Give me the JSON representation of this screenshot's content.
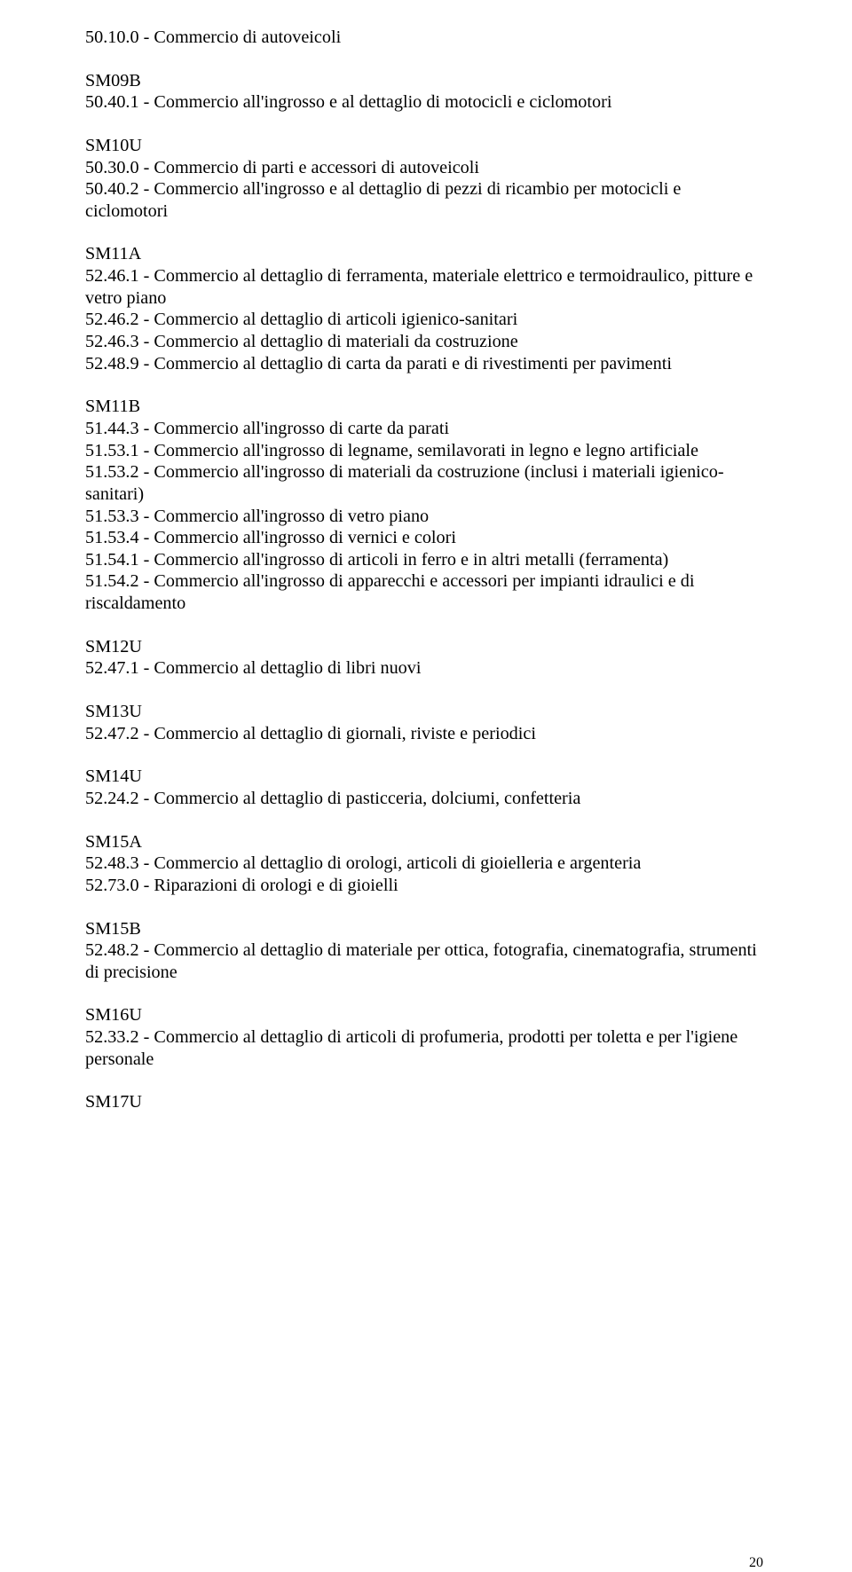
{
  "lines": [
    "50.10.0 - Commercio di autoveicoli",
    "BLANK",
    "SM09B",
    "50.40.1 - Commercio all'ingrosso e al dettaglio di motocicli e ciclomotori",
    "BLANK",
    "SM10U",
    "50.30.0 - Commercio di parti e accessori di autoveicoli",
    "50.40.2 - Commercio all'ingrosso e al dettaglio di pezzi di ricambio per motocicli e ciclomotori",
    "BLANK",
    "SM11A",
    "52.46.1 - Commercio al dettaglio di ferramenta, materiale elettrico e termoidraulico, pitture e vetro piano",
    "52.46.2 - Commercio al dettaglio di articoli igienico-sanitari",
    "52.46.3 - Commercio al dettaglio di materiali da costruzione",
    "52.48.9 - Commercio al dettaglio di carta da parati e di rivestimenti per pavimenti",
    "BLANK",
    "SM11B",
    "51.44.3 - Commercio all'ingrosso di carte da parati",
    "51.53.1 - Commercio all'ingrosso di legname, semilavorati in legno e legno artificiale",
    "51.53.2 - Commercio all'ingrosso di materiali da costruzione (inclusi i materiali igienico-sanitari)",
    "51.53.3 - Commercio all'ingrosso di vetro piano",
    "51.53.4 - Commercio all'ingrosso di vernici e colori",
    "51.54.1 - Commercio all'ingrosso di articoli in ferro e in altri metalli (ferramenta)",
    "51.54.2 - Commercio all'ingrosso di apparecchi e accessori per impianti idraulici e di riscaldamento",
    "BLANK",
    "SM12U",
    "52.47.1 - Commercio al dettaglio di libri nuovi",
    "BLANK",
    "SM13U",
    "52.47.2 - Commercio al dettaglio di giornali, riviste e periodici",
    "BLANK",
    "SM14U",
    "52.24.2 - Commercio al dettaglio di pasticceria, dolciumi, confetteria",
    "BLANK",
    "SM15A",
    "52.48.3 - Commercio al dettaglio di orologi, articoli di gioielleria e argenteria",
    "52.73.0 - Riparazioni di orologi e di gioielli",
    "BLANK",
    "SM15B",
    "52.48.2 - Commercio al dettaglio di materiale per ottica, fotografia, cinematografia, strumenti di precisione",
    "BLANK",
    "SM16U",
    "52.33.2 - Commercio al dettaglio di articoli di profumeria, prodotti per toletta e per l'igiene personale",
    "BLANK",
    "SM17U"
  ],
  "page_number": "20"
}
